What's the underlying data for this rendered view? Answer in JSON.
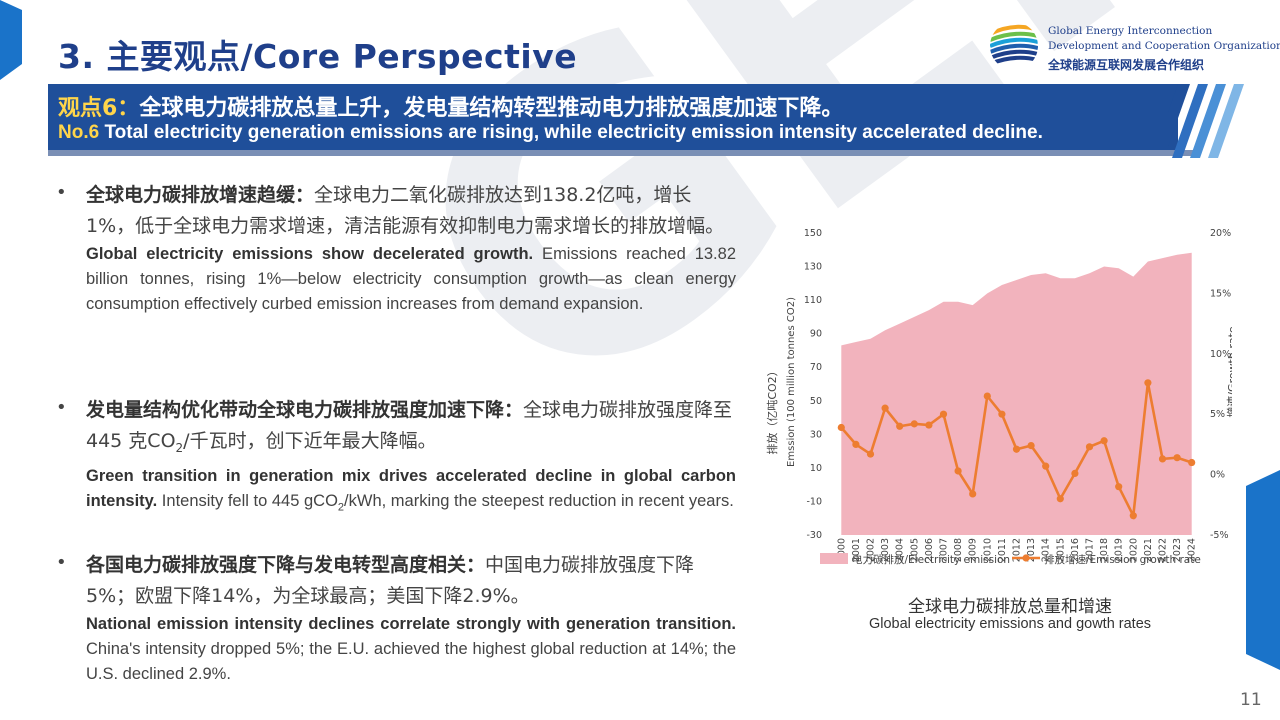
{
  "header": {
    "title": "3. 主要观点/Core Perspective",
    "org_en_line1": "Global Energy Interconnection",
    "org_en_line2": "Development and Cooperation Organization",
    "org_cn": "全球能源互联网发展合作组织"
  },
  "watermark": "GEIDCO",
  "banner": {
    "cn_label": "观点6：",
    "cn_text": "全球电力碳排放总量上升，发电量结构转型推动电力排放强度加速下降。",
    "en_label": "No.6",
    "en_text": " Total electricity generation emissions are rising, while electricity emission intensity accelerated decline."
  },
  "bullets": [
    {
      "cn_bold": "全球电力碳排放增速趋缓：",
      "cn_text": "全球电力二氧化碳排放达到138.2亿吨，增长1%，低于全球电力需求增速，清洁能源有效抑制电力需求增长的排放增幅。",
      "en_bold": "Global electricity emissions show decelerated growth.",
      "en_text": " Emissions reached 13.82 billion tonnes, rising 1%—below electricity consumption growth—as clean energy consumption effectively curbed emission increases from demand expansion."
    },
    {
      "cn_bold": "发电量结构优化带动全球电力碳排放强度加速下降：",
      "cn_text_a": "全球电力碳排放强度降至445 克CO",
      "cn_sub": "2",
      "cn_text_b": "/千瓦时，创下近年最大降幅。",
      "en_bold": "Green transition in generation mix drives accelerated decline in global carbon intensity.",
      "en_text_a": " Intensity fell to 445 gCO",
      "en_sub": "2",
      "en_text_b": "/kWh, marking the steepest reduction in recent years."
    },
    {
      "cn_bold": "各国电力碳排放强度下降与发电转型高度相关：",
      "cn_text": "中国电力碳排放强度下降5%；欧盟下降14%，为全球最高；美国下降2.9%。",
      "en_bold": "National emission intensity declines correlate strongly with generation transition.",
      "en_text": " China's intensity dropped 5%; the E.U. achieved the highest global reduction at 14%; the U.S. declined 2.9%."
    }
  ],
  "chart_title_cn": "全球电力碳排放总量和增速",
  "chart_title_en": "Global electricity emissions and gowth rates",
  "page_number": "11",
  "colors": {
    "brand_blue": "#1f3f8a",
    "banner_blue": "#1f4f9a",
    "highlight_yellow": "#ffd54a",
    "area_pink": "#f2b3bd",
    "line_orange": "#ed7d31"
  },
  "chart_data": {
    "type": "area",
    "x": [
      "2000",
      "2001",
      "2002",
      "2003",
      "2004",
      "2005",
      "2006",
      "2007",
      "2008",
      "2009",
      "2010",
      "2011",
      "2012",
      "2013",
      "2014",
      "2015",
      "2016",
      "2017",
      "2018",
      "2019",
      "2020",
      "2021",
      "2022",
      "2023",
      "2024"
    ],
    "series": [
      {
        "name": "电力碳排放/Electricity emission",
        "type": "area",
        "axis": "left",
        "values": [
          83,
          85,
          87,
          92,
          96,
          100,
          104,
          109,
          109,
          107,
          114,
          119,
          122,
          125,
          126,
          123,
          123,
          126,
          130,
          129,
          124,
          133,
          135,
          137,
          138.2
        ]
      },
      {
        "name": "排放增速/Emission growth rate",
        "type": "line",
        "axis": "right",
        "values": [
          3.9,
          2.5,
          1.7,
          5.5,
          4.0,
          4.2,
          4.1,
          5.0,
          0.3,
          -1.6,
          6.5,
          5.0,
          2.1,
          2.4,
          0.7,
          -2.0,
          0.1,
          2.3,
          2.8,
          -1.0,
          -3.4,
          7.6,
          1.3,
          1.4,
          1.0
        ]
      }
    ],
    "yleft": {
      "label": "排放（亿吨CO2）",
      "label_en": "Emssion (100 million tonnes CO2)",
      "ticks": [
        "150",
        "130",
        "110",
        "90",
        "70",
        "50",
        "30",
        "10",
        "-10",
        "-30"
      ],
      "range": [
        -30,
        150
      ]
    },
    "yright": {
      "label": "增速/Growth rate",
      "ticks": [
        "20%",
        "15%",
        "10%",
        "5%",
        "0%",
        "-5%"
      ],
      "range": [
        -5,
        20
      ]
    },
    "legend_position": "bottom",
    "grid": false
  }
}
